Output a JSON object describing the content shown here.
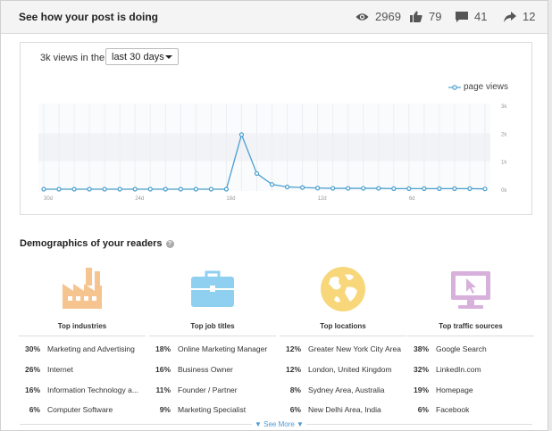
{
  "header": {
    "title": "See how your post is doing",
    "stats": {
      "views": "2969",
      "likes": "79",
      "comments": "41",
      "shares": "12"
    }
  },
  "chart_panel": {
    "views_text": "3k views in the",
    "range": "last 30 days",
    "legend": "page views"
  },
  "chart_data": {
    "type": "line",
    "series": [
      {
        "name": "page views",
        "values": [
          0,
          0,
          0,
          0,
          0,
          0,
          0,
          0,
          0,
          0,
          0,
          0,
          0,
          1950,
          560,
          170,
          80,
          60,
          40,
          30,
          30,
          30,
          30,
          20,
          20,
          20,
          20,
          20,
          20,
          10
        ]
      }
    ],
    "x_tick_labels": [
      "30d",
      "24d",
      "18d",
      "12d",
      "6d"
    ],
    "x_tick_positions": [
      0,
      6,
      12,
      18,
      24
    ],
    "y_tick_labels": [
      "3k",
      "2k",
      "1k",
      "0k"
    ],
    "ylim": [
      0,
      3000
    ],
    "grid": true,
    "legend_position": "top-right",
    "color": "#4a9fd0"
  },
  "demographics": {
    "title": "Demographics of your readers",
    "see_more": "See More",
    "columns": [
      {
        "title": "Top industries",
        "icon": "factory-icon",
        "color": "#f5c48f",
        "rows": [
          {
            "pct": "30%",
            "name": "Marketing and Advertising"
          },
          {
            "pct": "26%",
            "name": "Internet"
          },
          {
            "pct": "16%",
            "name": "Information Technology a..."
          },
          {
            "pct": "6%",
            "name": "Computer Software"
          }
        ]
      },
      {
        "title": "Top job titles",
        "icon": "briefcase-icon",
        "color": "#8fd0f0",
        "rows": [
          {
            "pct": "18%",
            "name": "Online Marketing Manager"
          },
          {
            "pct": "16%",
            "name": "Business Owner"
          },
          {
            "pct": "11%",
            "name": "Founder / Partner"
          },
          {
            "pct": "9%",
            "name": "Marketing Specialist"
          }
        ]
      },
      {
        "title": "Top locations",
        "icon": "globe-icon",
        "color": "#f7d77a",
        "rows": [
          {
            "pct": "12%",
            "name": "Greater New York City Area"
          },
          {
            "pct": "12%",
            "name": "London, United Kingdom"
          },
          {
            "pct": "8%",
            "name": "Sydney Area, Australia"
          },
          {
            "pct": "6%",
            "name": "New Delhi Area, India"
          }
        ]
      },
      {
        "title": "Top traffic sources",
        "icon": "computer-cursor-icon",
        "color": "#d8b0dc",
        "rows": [
          {
            "pct": "38%",
            "name": "Google Search"
          },
          {
            "pct": "32%",
            "name": "LinkedIn.com"
          },
          {
            "pct": "19%",
            "name": "Homepage"
          },
          {
            "pct": "6%",
            "name": "Facebook"
          }
        ]
      }
    ]
  }
}
